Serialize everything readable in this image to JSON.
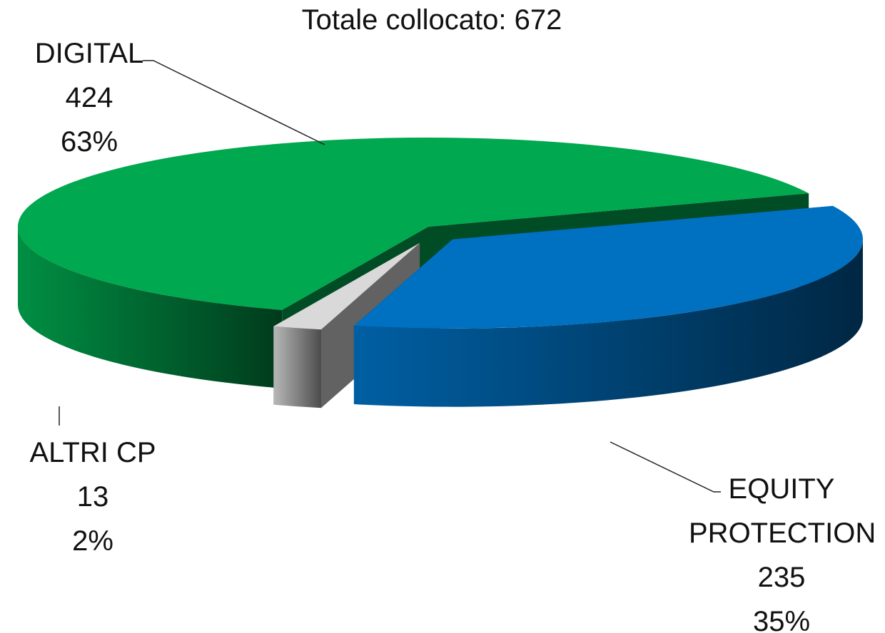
{
  "chart_data": {
    "type": "pie3d",
    "title": "Totale collocato: 672",
    "categories": [
      "DIGITAL",
      "EQUITY PROTECTION",
      "ALTRI CP"
    ],
    "values": [
      424,
      235,
      13
    ],
    "percentages": [
      63,
      35,
      2
    ],
    "percentage_labels": [
      "63%",
      "35%",
      "2%"
    ],
    "colors": [
      "#00a84f",
      "#0070c0",
      "#d9d9d9"
    ]
  }
}
